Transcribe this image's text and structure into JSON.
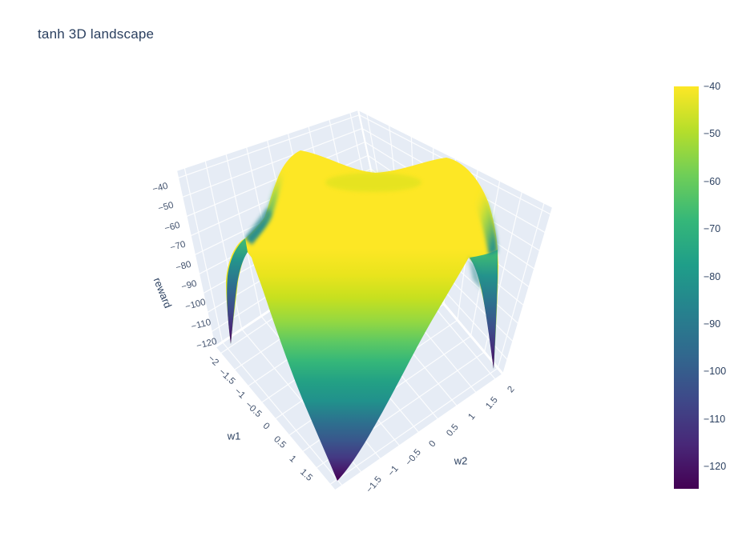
{
  "title": "tanh 3D landscape",
  "colors": {
    "background": "#ffffff",
    "pane": "#e6ecf5",
    "grid": "#ffffff",
    "tick_font": "#44546f",
    "title_font": "#2a3f5f",
    "viridis": [
      "#fde725",
      "#b5de2b",
      "#6ece58",
      "#35b779",
      "#1f9e89",
      "#26828e",
      "#31688e",
      "#3e4989",
      "#482878",
      "#440154"
    ]
  },
  "scene": {
    "x_title": "w1",
    "y_title": "w2",
    "z_title": "reward",
    "x_ticks": [
      "−2",
      "−1.5",
      "−1",
      "−0.5",
      "0",
      "0.5",
      "1",
      "1.5"
    ],
    "y_ticks": [
      "−1.5",
      "−1",
      "−0.5",
      "0",
      "0.5",
      "1",
      "1.5",
      "2"
    ],
    "z_ticks": [
      "−40",
      "−50",
      "−60",
      "−70",
      "−80",
      "−90",
      "−100",
      "−110",
      "−120"
    ]
  },
  "colorbar": {
    "ticks": [
      "−40",
      "−50",
      "−60",
      "−70",
      "−80",
      "−90",
      "−100",
      "−110",
      "−120"
    ]
  },
  "chart_data": {
    "type": "surface",
    "title": "tanh 3D landscape",
    "x": {
      "label": "w1",
      "range": [
        -2,
        2
      ],
      "ticks": [
        -2,
        -1.5,
        -1,
        -0.5,
        0,
        0.5,
        1,
        1.5
      ]
    },
    "y": {
      "label": "w2",
      "range": [
        -2,
        2
      ],
      "ticks": [
        -1.5,
        -1,
        -0.5,
        0,
        0.5,
        1,
        1.5,
        2
      ]
    },
    "z": {
      "label": "reward",
      "max": -40,
      "min": -125,
      "ticks": [
        -40,
        -50,
        -60,
        -70,
        -80,
        -90,
        -100,
        -110,
        -120
      ]
    },
    "colorscale": "Viridis",
    "colorbar": {
      "position": "right",
      "top_value": -40,
      "bottom_value": -125,
      "ticks": [
        -40,
        -50,
        -60,
        -70,
        -80,
        -90,
        -100,
        -110,
        -120
      ]
    },
    "surface_shape": "broad flat plateau at z ≈ −40 over the central region with a shallow saddle dip between two back humps; z falls smoothly into a wide front bowl and plunges to narrow minima of ≈ −125 at the four domain corners",
    "grid": true,
    "legend_position": "right-colorbar"
  }
}
